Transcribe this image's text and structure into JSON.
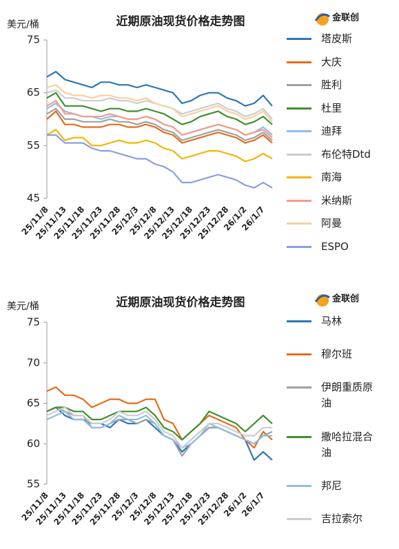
{
  "chart_data": [
    {
      "type": "line",
      "title": "近期原油现货价格走势图",
      "y_label": "美元/桶",
      "logo": "金联创",
      "categories": [
        "25/11/8",
        null,
        "25/11/13",
        null,
        "25/11/18",
        null,
        "25/11/23",
        null,
        "25/11/28",
        null,
        "25/12/3",
        null,
        "25/12/8",
        null,
        "25/12/13",
        null,
        "25/12/18",
        null,
        "25/12/23",
        null,
        "25/12/28",
        null,
        "26/1/2",
        null,
        "26/1/7",
        null
      ],
      "ylim": [
        45,
        75
      ],
      "yticks": [
        45,
        55,
        65,
        75
      ],
      "series": [
        {
          "name": "塔皮斯",
          "color": "#2e75b6",
          "values": [
            68,
            69,
            67.5,
            67,
            66.5,
            66,
            67,
            67,
            66.5,
            66.5,
            66,
            66.5,
            66,
            65.5,
            65,
            63,
            63.5,
            64.5,
            65,
            65,
            64,
            63.5,
            62.5,
            63,
            64.5,
            62.5
          ]
        },
        {
          "name": "大庆",
          "color": "#e36c1d",
          "values": [
            60,
            61.5,
            59,
            59,
            58.5,
            58.5,
            58.5,
            59,
            59,
            58.5,
            58.5,
            59,
            58.5,
            57.5,
            57,
            55.5,
            56,
            56.5,
            57,
            57.5,
            57,
            56.5,
            55.5,
            56,
            57,
            55.5
          ]
        },
        {
          "name": "胜利",
          "color": "#a0a0a0",
          "values": [
            61,
            62,
            60,
            60,
            59.5,
            59.5,
            59.5,
            60,
            59.5,
            59.5,
            59,
            59.5,
            59,
            58,
            57.5,
            56,
            56.5,
            57,
            57.5,
            58,
            57.5,
            57,
            56,
            56.5,
            57.5,
            56
          ]
        },
        {
          "name": "杜里",
          "color": "#3f8f2a",
          "values": [
            64,
            65,
            62.5,
            62.5,
            62.5,
            62,
            61.5,
            62,
            62,
            61.5,
            61.5,
            62,
            61.5,
            61,
            60,
            59,
            59.5,
            60.5,
            61,
            61.5,
            60.5,
            60,
            59,
            59.5,
            60.5,
            59
          ]
        },
        {
          "name": "迪拜",
          "color": "#8fbde6",
          "values": [
            62,
            63,
            61.5,
            61,
            60.5,
            60.5,
            60,
            60.5,
            60.5,
            60,
            60,
            60.5,
            60,
            59,
            58.5,
            57,
            57.5,
            58,
            58.5,
            59,
            58.5,
            58,
            57,
            57.5,
            58.5,
            57
          ]
        },
        {
          "name": "布伦特Dtd",
          "color": "#cccccc",
          "values": [
            65,
            65.5,
            64,
            64,
            63.5,
            63.5,
            63.5,
            64,
            63.5,
            63.5,
            63,
            63.5,
            63,
            62.5,
            62,
            61,
            61.5,
            62,
            62.5,
            63,
            62,
            61.5,
            60.5,
            61,
            62,
            60
          ]
        },
        {
          "name": "南海",
          "color": "#f2b600",
          "values": [
            57,
            58,
            56,
            56.5,
            56.5,
            55,
            55,
            55.5,
            56,
            55.5,
            55.5,
            56,
            55.5,
            54.5,
            54,
            52.5,
            53,
            53.5,
            54,
            54,
            53.5,
            53,
            52,
            52.5,
            53.5,
            52.5
          ]
        },
        {
          "name": "米纳斯",
          "color": "#f39a8a",
          "values": [
            62.5,
            63.5,
            61,
            61,
            60.5,
            60.5,
            60.5,
            61,
            60.5,
            60,
            60,
            60.5,
            60,
            59,
            58.5,
            57,
            57.5,
            58,
            58.5,
            59,
            58.5,
            58,
            57,
            57.5,
            58,
            56.5
          ]
        },
        {
          "name": "阿曼",
          "color": "#f8cfa0",
          "values": [
            66,
            66.5,
            65,
            64.5,
            64.5,
            64,
            64.5,
            64.5,
            64,
            64,
            63.5,
            64,
            63,
            62.5,
            62,
            60.5,
            61,
            61.5,
            62,
            62.5,
            61.5,
            61,
            60,
            60.5,
            61.5,
            59.5
          ]
        },
        {
          "name": "ESPO",
          "color": "#8c9de0",
          "values": [
            57,
            57,
            55.5,
            55.5,
            55.5,
            54.5,
            54,
            54,
            53.5,
            53,
            52.5,
            52.5,
            51.5,
            51,
            50,
            48,
            48,
            48.5,
            49,
            49.5,
            49,
            48.5,
            47.5,
            47,
            48,
            47
          ]
        }
      ]
    },
    {
      "type": "line",
      "title": "近期原油现货价格走势图",
      "y_label": "美元/桶",
      "logo": "金联创",
      "categories": [
        "25/11/8",
        null,
        "25/11/13",
        null,
        "25/11/18",
        null,
        "25/11/23",
        null,
        "25/11/28",
        null,
        "25/12/3",
        null,
        "25/12/8",
        null,
        "25/12/13",
        null,
        "25/12/18",
        null,
        "25/12/23",
        null,
        "25/12/28",
        null,
        "26/1/2",
        null,
        "26/1/7",
        null
      ],
      "ylim": [
        55,
        75
      ],
      "yticks": [
        55,
        60,
        65,
        70,
        75
      ],
      "series": [
        {
          "name": "马林",
          "color": "#2e75b6",
          "values": [
            64,
            64.5,
            63.5,
            63,
            63,
            62.5,
            62.5,
            62,
            63,
            62.5,
            62.5,
            63,
            62,
            61,
            60.5,
            59,
            60,
            61,
            62,
            62,
            61.5,
            61,
            60.5,
            58,
            59,
            58
          ]
        },
        {
          "name": "穆尔班",
          "color": "#e36c1d",
          "values": [
            66.5,
            67,
            66,
            66,
            65.5,
            64.5,
            65,
            65.5,
            65.5,
            65,
            65,
            65.5,
            65.5,
            63,
            62.5,
            60.5,
            61.5,
            62.5,
            63.5,
            63,
            62.5,
            62,
            60.5,
            59.5,
            61.5,
            60.5
          ]
        },
        {
          "name": "伊朗重质原油",
          "color": "#a0a0a0",
          "values": [
            64,
            64.5,
            64,
            63.5,
            63.5,
            62,
            62,
            62.5,
            63,
            63,
            62.5,
            63,
            62.5,
            61,
            60.5,
            58.5,
            60,
            61,
            62,
            62,
            61.5,
            61,
            60.5,
            60,
            61,
            61.5
          ]
        },
        {
          "name": "撒哈拉混合油",
          "color": "#3f8f2a",
          "values": [
            64,
            64.5,
            64.5,
            64,
            64,
            63,
            63,
            63.5,
            64,
            64,
            64,
            64.5,
            63.5,
            62,
            61.5,
            60.5,
            61.5,
            62.5,
            64,
            63.5,
            63,
            62.5,
            61.5,
            62.5,
            63.5,
            62.5
          ]
        },
        {
          "name": "邦尼",
          "color": "#8fbde6",
          "values": [
            63,
            63.5,
            64,
            63,
            63,
            62,
            62,
            62.5,
            63.5,
            63,
            63,
            63.5,
            62.5,
            61,
            60.5,
            59.5,
            60,
            61,
            62.5,
            62,
            61.5,
            61,
            60.5,
            60,
            61,
            61
          ]
        },
        {
          "name": "吉拉索尔",
          "color": "#cccccc",
          "values": [
            63.5,
            64,
            64.5,
            63.5,
            63.5,
            62.5,
            62.5,
            63,
            64,
            63.5,
            63.5,
            64,
            63,
            61.5,
            61,
            59.5,
            60.5,
            61.5,
            62.5,
            62.5,
            62,
            61.5,
            61,
            61,
            62,
            62
          ]
        }
      ]
    }
  ]
}
